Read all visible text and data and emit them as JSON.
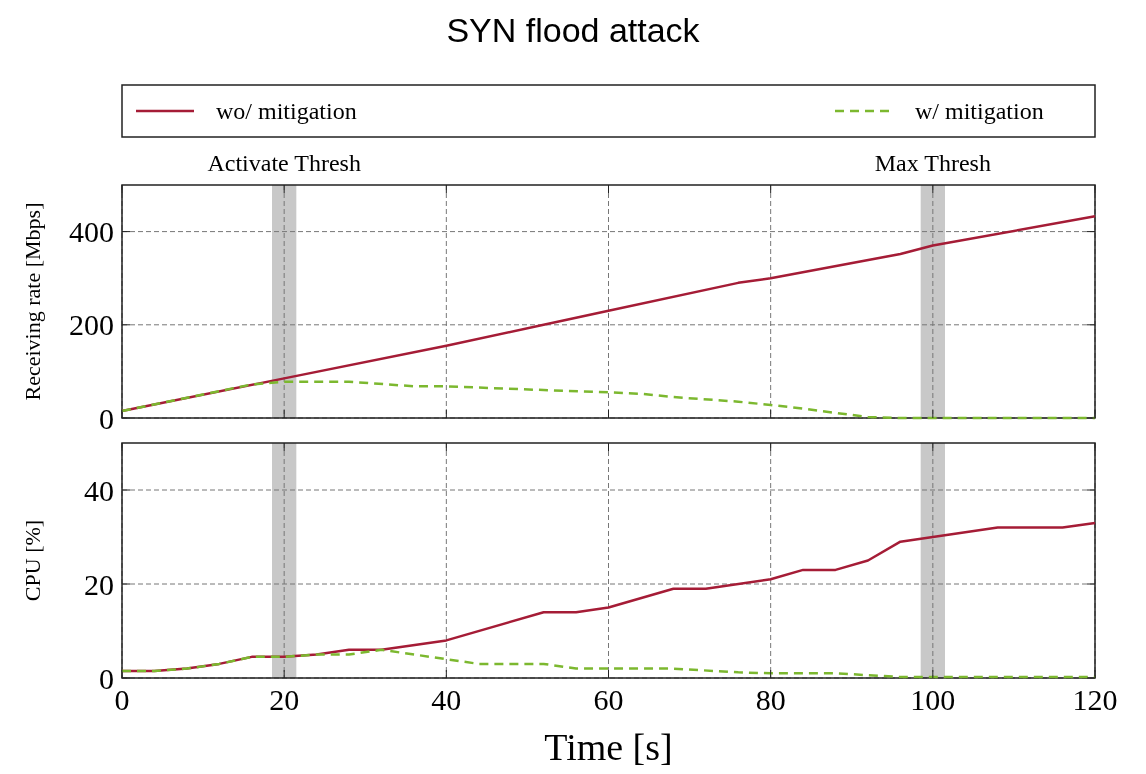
{
  "chart_data": [
    {
      "type": "line",
      "title": "SYN flood attack",
      "ylabel": "Receiving rate [Mbps]",
      "xlim": [
        0,
        120
      ],
      "xticks": [
        0,
        20,
        40,
        60,
        80,
        100,
        120
      ],
      "ylim": [
        0,
        500
      ],
      "yticks": [
        0,
        200,
        400
      ],
      "tick_labels": "y",
      "grid": true,
      "legend": "top",
      "bands": [
        {
          "axis": "x",
          "from": 18.5,
          "to": 21.5,
          "label": "Activate Thresh",
          "color": "#c8c8c8"
        },
        {
          "axis": "x",
          "from": 98.5,
          "to": 101.5,
          "label": "Max Thresh",
          "color": "#c8c8c8"
        }
      ],
      "series": [
        {
          "name": "wo/ mitigation",
          "color": "#a51c36",
          "line_style": "solid",
          "x": [
            0,
            20,
            40,
            52,
            60,
            76,
            80,
            96,
            100,
            120
          ],
          "values": [
            15,
            85,
            155,
            200,
            230,
            290,
            300,
            352,
            370,
            433
          ]
        },
        {
          "name": "w/ mitigation",
          "color": "#7cb82f",
          "line_style": "dashed",
          "x": [
            0,
            16,
            20,
            28,
            36,
            40,
            52,
            60,
            64,
            68,
            76,
            80,
            84,
            92,
            96,
            120
          ],
          "values": [
            15,
            72,
            78,
            78,
            68,
            68,
            60,
            55,
            52,
            45,
            35,
            28,
            20,
            2,
            0,
            0
          ]
        }
      ]
    },
    {
      "type": "line",
      "xlabel": "Time [s]",
      "ylabel": "CPU [%]",
      "xlim": [
        0,
        120
      ],
      "xticks": [
        0,
        20,
        40,
        60,
        80,
        100,
        120
      ],
      "ylim": [
        0,
        50
      ],
      "yticks": [
        0,
        20,
        40
      ],
      "grid": true,
      "bands": [
        {
          "axis": "x",
          "from": 18.5,
          "to": 21.5,
          "color": "#c8c8c8"
        },
        {
          "axis": "x",
          "from": 98.5,
          "to": 101.5,
          "color": "#c8c8c8"
        }
      ],
      "series": [
        {
          "color": "#a51c36",
          "line_style": "solid",
          "x": [
            0,
            4,
            8,
            12,
            16,
            20,
            24,
            28,
            32,
            40,
            52,
            56,
            60,
            68,
            72,
            80,
            84,
            88,
            92,
            96,
            100,
            108,
            116,
            120
          ],
          "values": [
            1.5,
            1.5,
            2,
            3,
            4.5,
            4.5,
            5,
            6,
            6,
            8,
            14,
            14,
            15,
            19,
            19,
            21,
            23,
            23,
            25,
            29,
            30,
            32,
            32,
            33
          ]
        },
        {
          "color": "#7cb82f",
          "line_style": "dashed",
          "x": [
            0,
            4,
            8,
            12,
            16,
            20,
            24,
            28,
            32,
            40,
            44,
            52,
            56,
            68,
            76,
            80,
            88,
            96,
            120
          ],
          "values": [
            1.5,
            1.5,
            2,
            3,
            4.5,
            4.5,
            5,
            5,
            6,
            4,
            3,
            3,
            2,
            2,
            1.2,
            1,
            1,
            0.2,
            0.2
          ]
        }
      ]
    }
  ]
}
